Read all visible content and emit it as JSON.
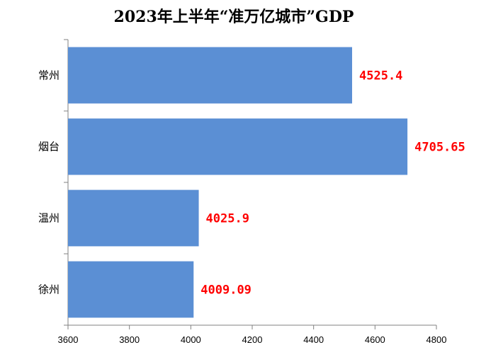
{
  "chart_data": {
    "type": "bar",
    "orientation": "horizontal",
    "title": "2023年上半年“准万亿城市”GDP",
    "categories": [
      "常州",
      "烟台",
      "温州",
      "徐州"
    ],
    "values": [
      4525.4,
      4705.65,
      4025.9,
      4009.09
    ],
    "value_labels": [
      "4525.4",
      "4705.65",
      "4025.9",
      "4009.09"
    ],
    "xlim": [
      3600,
      4800
    ],
    "xticks": [
      3600,
      3800,
      4000,
      4200,
      4400,
      4600,
      4800
    ],
    "xlabel": "",
    "ylabel": "",
    "grid": false,
    "legend": "none",
    "bar_color": "#5b8fd4",
    "label_color": "#ff0000"
  }
}
